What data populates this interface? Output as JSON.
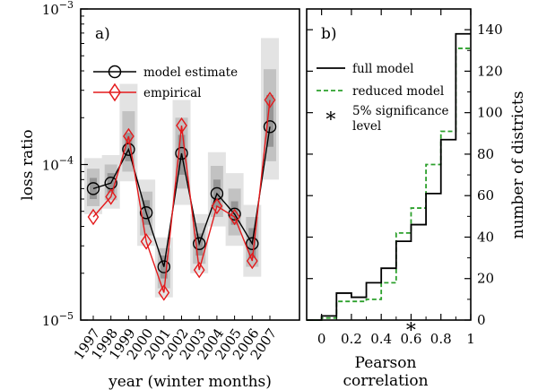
{
  "chart_data": [
    {
      "type": "line",
      "panel_label": "a)",
      "xlabel": "year (winter months)",
      "ylabel": "loss ratio",
      "yscale": "log",
      "ylim": [
        1e-05,
        0.001
      ],
      "ytick_labels": [
        {
          "value": 1e-05,
          "base": "10",
          "exp": "−5"
        },
        {
          "value": 0.0001,
          "base": "10",
          "exp": "−4"
        },
        {
          "value": 0.001,
          "base": "10",
          "exp": "−3"
        }
      ],
      "categories": [
        "1997",
        "1998",
        "1999",
        "2000",
        "2001",
        "2002",
        "2003",
        "2004",
        "2005",
        "2006",
        "2007"
      ],
      "series": [
        {
          "name": "model estimate",
          "color": "#000000",
          "marker": "circle",
          "values": [
            7e-05,
            7.6e-05,
            0.000125,
            4.9e-05,
            2.2e-05,
            0.000118,
            3.1e-05,
            6.5e-05,
            4.8e-05,
            3.1e-05,
            0.000175
          ]
        },
        {
          "name": "empirical",
          "color": "#e41a1c",
          "marker": "diamond",
          "values": [
            4.6e-05,
            6.2e-05,
            0.000152,
            3.2e-05,
            1.5e-05,
            0.000178,
            2.1e-05,
            5.4e-05,
            4.6e-05,
            2.4e-05,
            0.00026
          ]
        }
      ],
      "uncertainty_bands": [
        {
          "outer": [
            4.8e-05,
            0.00011
          ],
          "mid": [
            5.4e-05,
            9.4e-05
          ],
          "inner": [
            6e-05,
            8.2e-05
          ]
        },
        {
          "outer": [
            5.2e-05,
            0.000115
          ],
          "mid": [
            5.9e-05,
            0.0001
          ],
          "inner": [
            6.6e-05,
            8.8e-05
          ]
        },
        {
          "outer": [
            7.8e-05,
            0.00033
          ],
          "mid": [
            9e-05,
            0.00022
          ],
          "inner": [
            0.000105,
            0.00016
          ]
        },
        {
          "outer": [
            3e-05,
            8e-05
          ],
          "mid": [
            3.5e-05,
            6.7e-05
          ],
          "inner": [
            4.1e-05,
            5.9e-05
          ]
        },
        {
          "outer": [
            1.4e-05,
            3.4e-05
          ],
          "mid": [
            1.6e-05,
            2.9e-05
          ],
          "inner": [
            1.85e-05,
            2.6e-05
          ]
        },
        {
          "outer": [
            5.5e-05,
            0.00026
          ],
          "mid": [
            7e-05,
            0.0002
          ],
          "inner": [
            8.6e-05,
            0.000155
          ]
        },
        {
          "outer": [
            2e-05,
            4.8e-05
          ],
          "mid": [
            2.3e-05,
            4.2e-05
          ],
          "inner": [
            2.6e-05,
            3.6e-05
          ]
        },
        {
          "outer": [
            4e-05,
            0.00012
          ],
          "mid": [
            4.6e-05,
            9.8e-05
          ],
          "inner": [
            5.3e-05,
            8e-05
          ]
        },
        {
          "outer": [
            3e-05,
            8.8e-05
          ],
          "mid": [
            3.5e-05,
            7e-05
          ],
          "inner": [
            4.1e-05,
            5.8e-05
          ]
        },
        {
          "outer": [
            1.9e-05,
            5.5e-05
          ],
          "mid": [
            2.2e-05,
            4.6e-05
          ],
          "inner": [
            2.5e-05,
            3.9e-05
          ]
        },
        {
          "outer": [
            8e-05,
            0.00065
          ],
          "mid": [
            0.000105,
            0.00041
          ],
          "inner": [
            0.00013,
            0.00028
          ]
        }
      ],
      "band_colors": [
        "#e3e3e3",
        "#c2c2c2",
        "#969696"
      ],
      "legend_position": "upper-left",
      "grid": false
    },
    {
      "type": "step",
      "panel_label": "b)",
      "xlabel": "Pearson correlation",
      "ylabel": "number of districts",
      "xlim": [
        -0.1,
        1.0
      ],
      "ylim": [
        0,
        150
      ],
      "xticks": [
        0,
        0.2,
        0.4,
        0.6,
        0.8,
        1
      ],
      "xtick_labels": [
        "0",
        "0.2",
        "0.4",
        "0.6",
        "0.8",
        "1"
      ],
      "yticks": [
        0,
        20,
        40,
        60,
        80,
        100,
        120,
        140
      ],
      "ytick_labels": [
        "0",
        "20",
        "40",
        "60",
        "80",
        "100",
        "120",
        "140"
      ],
      "bin_edges": [
        -0.1,
        0.0,
        0.1,
        0.2,
        0.3,
        0.4,
        0.5,
        0.6,
        0.7,
        0.8,
        0.9,
        1.0
      ],
      "series": [
        {
          "name": "full model",
          "color": "#000000",
          "dash": "solid",
          "values": [
            0,
            2,
            13,
            11,
            18,
            25,
            38,
            46,
            61,
            87,
            138
          ]
        },
        {
          "name": "reduced model",
          "color": "#2ca02c",
          "dash": "dashed",
          "values": [
            0,
            1,
            9,
            9,
            10,
            18,
            42,
            54,
            75,
            91,
            131
          ]
        }
      ],
      "marker_point": {
        "name": "5% significance level",
        "x": 0.6,
        "y": 0,
        "marker": "asterisk"
      },
      "legend_position": "upper-left",
      "grid": false
    }
  ]
}
